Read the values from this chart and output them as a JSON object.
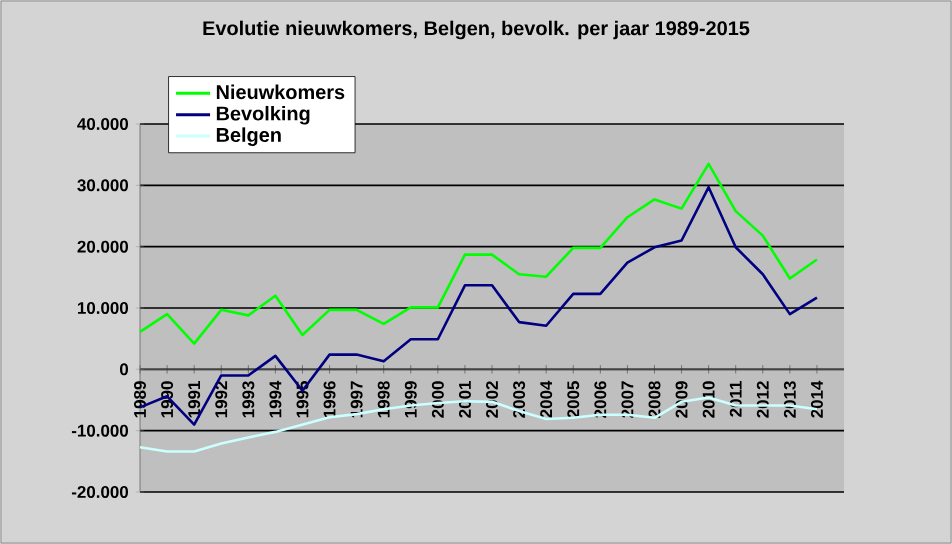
{
  "chart_data": {
    "type": "line",
    "title": "Evolutie nieuwkomers, Belgen, bevolk. per jaar 1989-2015",
    "categories": [
      "1989",
      "1990",
      "1991",
      "1992",
      "1993",
      "1994",
      "1995",
      "1996",
      "1997",
      "1998",
      "1999",
      "2000",
      "2001",
      "2002",
      "2003",
      "2004",
      "2005",
      "2006",
      "2007",
      "2008",
      "2009",
      "2010",
      "2011",
      "2012",
      "2013",
      "2014"
    ],
    "series": [
      {
        "name": "Nieuwkomers",
        "color": "#00ff00",
        "values": [
          6100,
          9000,
          4200,
          9700,
          8800,
          12000,
          5600,
          9700,
          9700,
          7400,
          10100,
          10100,
          18700,
          18700,
          15500,
          15100,
          19800,
          19800,
          24800,
          27700,
          26200,
          33500,
          25800,
          21800,
          14800,
          17900
        ]
      },
      {
        "name": "Bevolking",
        "color": "#000080",
        "values": [
          -6200,
          -4400,
          -9000,
          -1000,
          -1000,
          2200,
          -3500,
          2400,
          2400,
          1300,
          4900,
          4900,
          13700,
          13700,
          7700,
          7100,
          12300,
          12300,
          17400,
          19900,
          21000,
          29700,
          19900,
          15500,
          9000,
          11700
        ]
      },
      {
        "name": "Belgen",
        "color": "#ccffff",
        "values": [
          -12700,
          -13400,
          -13400,
          -12100,
          -11100,
          -10200,
          -9000,
          -7800,
          -7300,
          -6500,
          -5900,
          -5500,
          -5200,
          -5300,
          -6800,
          -8100,
          -7900,
          -7400,
          -7400,
          -7900,
          -5300,
          -4600,
          -5900,
          -5900,
          -5900,
          -6500
        ]
      }
    ],
    "ylim": [
      -20000,
      40000
    ],
    "yticks": [
      {
        "value": -20000,
        "label": "-20.000"
      },
      {
        "value": -10000,
        "label": "-10.000"
      },
      0,
      {
        "value": 10000,
        "label": "10.000"
      },
      {
        "value": 20000,
        "label": "20.000"
      },
      {
        "value": 30000,
        "label": "30.000"
      },
      {
        "value": 40000,
        "label": "40.000"
      }
    ],
    "grid": "y",
    "legend": "top left",
    "marker": "none",
    "line_style": "solid"
  }
}
